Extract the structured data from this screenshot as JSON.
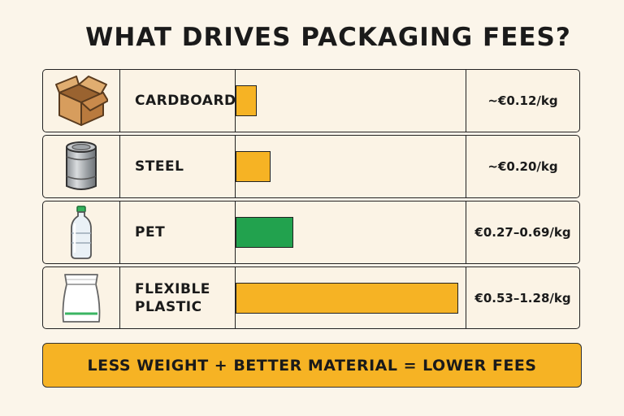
{
  "chart_data": {
    "type": "bar",
    "orientation": "horizontal",
    "title": "WHAT DRIVES PACKAGING FEES?",
    "categories": [
      "CARDBOARD",
      "STEEL",
      "PET",
      "FLEXIBLE PLASTIC"
    ],
    "values": [
      0.12,
      0.2,
      0.33,
      1.28
    ],
    "value_labels": [
      "~€0.12/kg",
      "~€0.20/kg",
      "€0.27–0.69/kg",
      "€0.53–1.28/kg"
    ],
    "bar_colors": [
      "#f6b324",
      "#f6b324",
      "#22a24e",
      "#f6b324"
    ],
    "xlim": [
      0,
      1.28
    ],
    "icons": [
      "cardboard-box-icon",
      "steel-can-icon",
      "pet-bottle-icon",
      "flexible-pouch-icon"
    ],
    "grid": false
  },
  "banner": "LESS WEIGHT + BETTER MATERIAL = LOWER FEES"
}
